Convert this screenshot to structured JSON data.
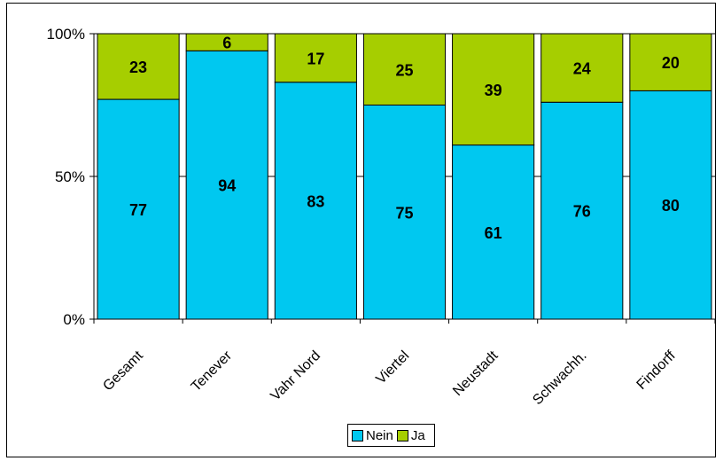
{
  "chart_data": {
    "type": "bar",
    "stacked": true,
    "percent": true,
    "categories": [
      "Gesamt",
      "Tenever",
      "Vahr Nord",
      "Viertel",
      "Neustadt",
      "Schwachh.",
      "Findorff"
    ],
    "series": [
      {
        "name": "Nein",
        "color": "#00C8F0",
        "values": [
          77,
          94,
          83,
          75,
          61,
          76,
          80
        ]
      },
      {
        "name": "Ja",
        "color": "#A6CE00",
        "values": [
          23,
          6,
          17,
          25,
          39,
          24,
          20
        ]
      }
    ],
    "ylim": [
      0,
      100
    ],
    "yticks": [
      "0%",
      "50%",
      "100%"
    ],
    "legend_position": "bottom"
  }
}
